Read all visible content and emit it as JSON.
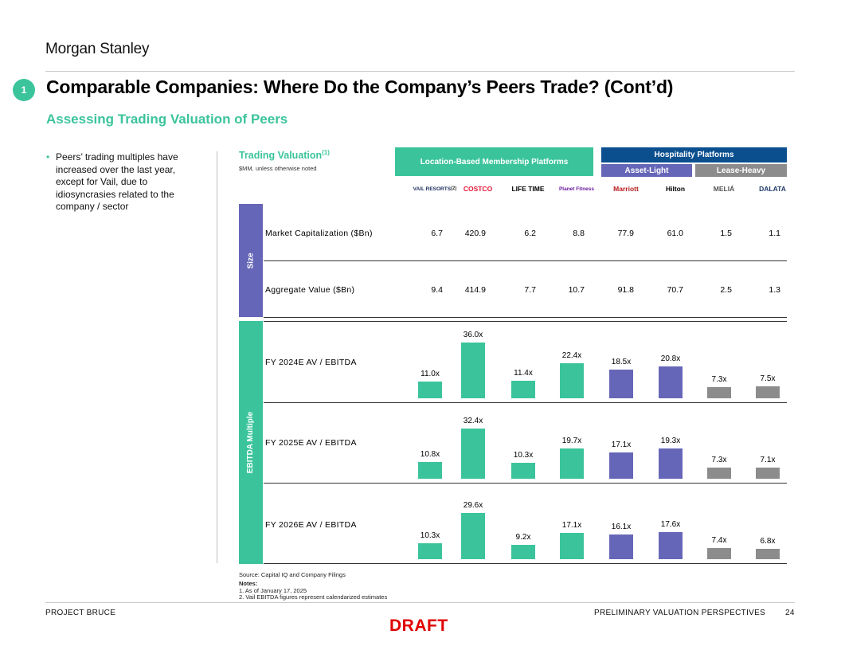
{
  "header": {
    "brand": "Morgan Stanley",
    "section_number": "1",
    "title": "Comparable Companies: Where Do the Company’s Peers Trade? (Cont’d)",
    "subtitle": "Assessing Trading Valuation of Peers"
  },
  "commentary": {
    "bullet": "Peers’ trading multiples have increased over the last year, except for Vail, due to idiosyncrasies related to the company / sector"
  },
  "panel": {
    "title": "Trading Valuation",
    "title_note": "(1)",
    "units_note": "$MM, unless otherwise noted",
    "group_location": "Location-Based Membership Platforms",
    "group_hospitality": "Hospitality Platforms",
    "sub_asset_light": "Asset-Light",
    "sub_lease_heavy": "Lease-Heavy",
    "size_label": "Size",
    "multiple_label": "EBITDA Multiple"
  },
  "companies": [
    {
      "name": "VAIL RESORTS",
      "note": "(2)",
      "color": "#1f2f5e"
    },
    {
      "name": "COSTCO",
      "note": "",
      "color": "#e31837"
    },
    {
      "name": "LIFE TIME",
      "note": "",
      "color": "#000000"
    },
    {
      "name": "Planet Fitness",
      "note": "",
      "color": "#6a1b9a"
    },
    {
      "name": "Marriott",
      "note": "",
      "color": "#b71c1c"
    },
    {
      "name": "Hilton",
      "note": "",
      "color": "#000000"
    },
    {
      "name": "MELIÁ",
      "note": "",
      "color": "#555555"
    },
    {
      "name": "DALATA",
      "note": "",
      "color": "#1f3a6b"
    }
  ],
  "size_rows": [
    {
      "label": "Market Capitalization ($Bn)",
      "values": [
        "6.7",
        "420.9",
        "6.2",
        "8.8",
        "77.9",
        "61.0",
        "1.5",
        "1.1"
      ]
    },
    {
      "label": "Aggregate Value ($Bn)",
      "values": [
        "9.4",
        "414.9",
        "7.7",
        "10.7",
        "91.8",
        "70.7",
        "2.5",
        "1.3"
      ]
    }
  ],
  "chart_data": {
    "type": "bar",
    "title": "Trading Valuation",
    "categories": [
      "Vail Resorts",
      "Costco",
      "Life Time",
      "Planet Fitness",
      "Marriott",
      "Hilton",
      "Meliá",
      "Dalata"
    ],
    "series": [
      {
        "name": "FY 2024E AV / EBITDA",
        "values": [
          11.0,
          36.0,
          11.4,
          22.4,
          18.5,
          20.8,
          7.3,
          7.5
        ],
        "labels": [
          "11.0x",
          "36.0x",
          "11.4x",
          "22.4x",
          "18.5x",
          "20.8x",
          "7.3x",
          "7.5x"
        ]
      },
      {
        "name": "FY 2025E AV / EBITDA",
        "values": [
          10.8,
          32.4,
          10.3,
          19.7,
          17.1,
          19.3,
          7.3,
          7.1
        ],
        "labels": [
          "10.8x",
          "32.4x",
          "10.3x",
          "19.7x",
          "17.1x",
          "19.3x",
          "7.3x",
          "7.1x"
        ]
      },
      {
        "name": "FY 2026E AV / EBITDA",
        "values": [
          10.3,
          29.6,
          9.2,
          17.1,
          16.1,
          17.6,
          7.4,
          6.8
        ],
        "labels": [
          "10.3x",
          "29.6x",
          "9.2x",
          "17.1x",
          "16.1x",
          "17.6x",
          "7.4x",
          "6.8x"
        ]
      }
    ],
    "bar_colors": [
      "#3bc49b",
      "#3bc49b",
      "#3bc49b",
      "#3bc49b",
      "#6666b8",
      "#6666b8",
      "#8c8c8c",
      "#8c8c8c"
    ],
    "ylim": [
      0,
      36
    ]
  },
  "colors": {
    "accent": "#3bc49b",
    "location_group": "#3bc49b",
    "hospitality_group": "#0b4f8f",
    "asset_light": "#6666b8",
    "lease_heavy": "#8c8c8c",
    "size_bar": "#6666b8",
    "draft": "#e00000"
  },
  "footer": {
    "source": "Source: Capital IQ and Company Filings",
    "notes_title": "Notes:",
    "notes": [
      "1.  As of January 17, 2025",
      "2.  Vail EBITDA figures represent calendarized estimates"
    ],
    "project": "PROJECT BRUCE",
    "section": "PRELIMINARY VALUATION PERSPECTIVES",
    "page": "24",
    "draft": "DRAFT"
  }
}
